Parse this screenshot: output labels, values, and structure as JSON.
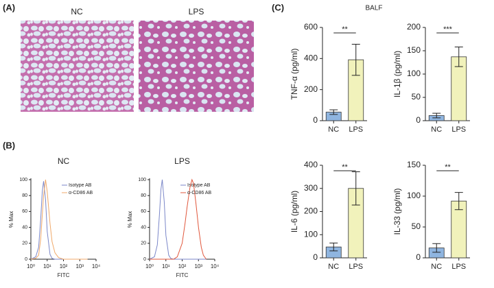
{
  "panel_labels": [
    "(A)",
    "(B)",
    "(C)"
  ],
  "histology": {
    "titles": [
      "NC",
      "LPS"
    ]
  },
  "group_title": "BALF",
  "chart_data": [
    {
      "type": "line",
      "title": "NC",
      "xlabel": "FITC",
      "ylabel": "% Max",
      "xlog": true,
      "legend": "upper right",
      "xlim": [
        1,
        10000
      ],
      "xticks": [
        {
          "value": 1,
          "label": "10⁰"
        },
        {
          "value": 10,
          "label": "10¹"
        },
        {
          "value": 100,
          "label": "10²"
        },
        {
          "value": 1000,
          "label": "10³"
        },
        {
          "value": 10000,
          "label": "10⁴"
        }
      ],
      "ylim": [
        0,
        100
      ],
      "yticks": [
        0,
        20,
        40,
        60,
        80,
        100
      ],
      "x": [
        1,
        2,
        3,
        4,
        5,
        6,
        8,
        10,
        15,
        20,
        30,
        50,
        100,
        150,
        200,
        300,
        400,
        500,
        700,
        1000,
        1500,
        2000,
        3000
      ],
      "series": [
        {
          "name": "Isotype AB",
          "color": "#7a86c8",
          "values": [
            0,
            3,
            15,
            50,
            85,
            98,
            75,
            35,
            6,
            1,
            0,
            0,
            0,
            0,
            0,
            0,
            0,
            0,
            0,
            0,
            0,
            0,
            0
          ]
        },
        {
          "name": "α-CD86 AB",
          "color": "#f0a868",
          "values": [
            0,
            1,
            5,
            25,
            55,
            80,
            100,
            85,
            45,
            22,
            8,
            2,
            0,
            0,
            0,
            0,
            0,
            0,
            0,
            0,
            0,
            0,
            0
          ]
        }
      ]
    },
    {
      "type": "line",
      "title": "LPS",
      "xlabel": "FITC",
      "ylabel": "% Max",
      "xlog": true,
      "legend": "upper right",
      "xlim": [
        1,
        10000
      ],
      "xticks": [
        {
          "value": 1,
          "label": "10⁰"
        },
        {
          "value": 10,
          "label": "10¹"
        },
        {
          "value": 100,
          "label": "10²"
        },
        {
          "value": 1000,
          "label": "10³"
        },
        {
          "value": 10000,
          "label": "10⁴"
        }
      ],
      "ylim": [
        0,
        100
      ],
      "yticks": [
        0,
        20,
        40,
        60,
        80,
        100
      ],
      "x": [
        1,
        2,
        3,
        4,
        5,
        6,
        8,
        10,
        15,
        20,
        30,
        50,
        100,
        150,
        200,
        300,
        400,
        500,
        700,
        1000,
        1500,
        2000,
        3000
      ],
      "series": [
        {
          "name": "Isotype AB",
          "color": "#7a86c8",
          "values": [
            0,
            3,
            18,
            55,
            88,
            100,
            72,
            30,
            5,
            1,
            0,
            0,
            0,
            0,
            0,
            0,
            0,
            0,
            0,
            0,
            0,
            0,
            0
          ]
        },
        {
          "name": "α-CD86 AB",
          "color": "#e0553a",
          "values": [
            0,
            0,
            0,
            0,
            0,
            0,
            0,
            0,
            0,
            0,
            0,
            3,
            20,
            45,
            65,
            90,
            100,
            95,
            70,
            40,
            15,
            5,
            0
          ]
        }
      ]
    },
    {
      "type": "bar",
      "ylabel": "TNF-α  (pg/ml)",
      "categories": [
        "NC",
        "LPS"
      ],
      "values": [
        55,
        392
      ],
      "errors": [
        15,
        100
      ],
      "colors": [
        "#8fb5e0",
        "#f1f2bb"
      ],
      "ylim": [
        0,
        600
      ],
      "yticks": [
        0,
        200,
        400,
        600
      ],
      "annotation": "**"
    },
    {
      "type": "bar",
      "ylabel": "IL-1β  (pg/ml)",
      "categories": [
        "NC",
        "LPS"
      ],
      "values": [
        11,
        137
      ],
      "errors": [
        5,
        21
      ],
      "colors": [
        "#8fb5e0",
        "#f1f2bb"
      ],
      "ylim": [
        0,
        200
      ],
      "yticks": [
        0,
        50,
        100,
        150,
        200
      ],
      "annotation": "***"
    },
    {
      "type": "bar",
      "ylabel": "IL-6 (pg/ml)",
      "categories": [
        "NC",
        "LPS"
      ],
      "values": [
        47,
        300
      ],
      "errors": [
        17,
        72
      ],
      "colors": [
        "#8fb5e0",
        "#f1f2bb"
      ],
      "ylim": [
        0,
        400
      ],
      "yticks": [
        0,
        100,
        200,
        300,
        400
      ],
      "annotation": "**"
    },
    {
      "type": "bar",
      "ylabel": "IL-33 (pg/ml)",
      "categories": [
        "NC",
        "LPS"
      ],
      "values": [
        16,
        92
      ],
      "errors": [
        7,
        14
      ],
      "colors": [
        "#8fb5e0",
        "#f1f2bb"
      ],
      "ylim": [
        0,
        150
      ],
      "yticks": [
        0,
        50,
        100,
        150
      ],
      "annotation": "**"
    }
  ]
}
